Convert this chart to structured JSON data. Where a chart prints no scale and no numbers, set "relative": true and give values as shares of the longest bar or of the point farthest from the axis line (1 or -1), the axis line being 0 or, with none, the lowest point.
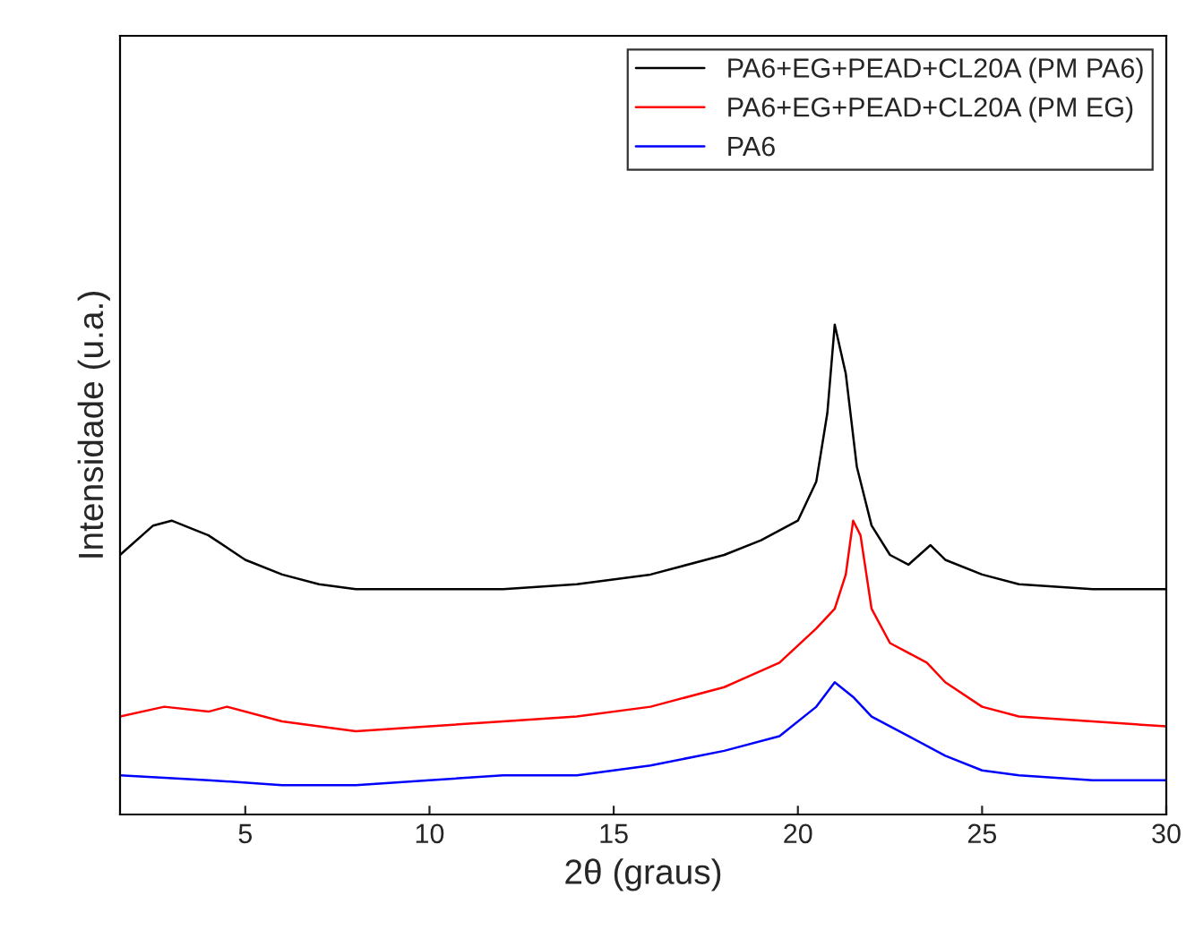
{
  "chart_data": {
    "type": "line",
    "xlabel": "2θ (graus)",
    "ylabel": "Intensidade (u.a.)",
    "relative": true,
    "xlim": [
      1.6,
      30
    ],
    "xticks": [
      5,
      10,
      15,
      20,
      25,
      30
    ],
    "grid": false,
    "legend": "top right",
    "line_style": "solid",
    "marker": "none",
    "tick_labels": "x",
    "series": [
      {
        "name": "PA6+EG+PEAD+CL20A (PM PA6)",
        "color": "#000000",
        "x": [
          1.6,
          2.5,
          3,
          4,
          5,
          6,
          7,
          8,
          10,
          12,
          14,
          16,
          18,
          19,
          20,
          20.5,
          20.8,
          21,
          21.3,
          21.6,
          22,
          22.5,
          23,
          23.6,
          24,
          25,
          26,
          28,
          30
        ],
        "values": [
          0.53,
          0.59,
          0.6,
          0.57,
          0.52,
          0.49,
          0.47,
          0.46,
          0.46,
          0.46,
          0.47,
          0.49,
          0.53,
          0.56,
          0.6,
          0.68,
          0.82,
          1.0,
          0.9,
          0.71,
          0.59,
          0.53,
          0.51,
          0.55,
          0.52,
          0.49,
          0.47,
          0.46,
          0.46
        ]
      },
      {
        "name": "PA6+EG+PEAD+CL20A (PM EG)",
        "color": "#ff0000",
        "x": [
          1.6,
          2.8,
          4,
          4.5,
          6,
          8,
          10,
          12,
          14,
          16,
          18,
          19.5,
          20.5,
          21,
          21.3,
          21.5,
          21.7,
          22,
          22.5,
          23.5,
          24,
          25,
          26,
          28,
          30
        ],
        "values": [
          0.2,
          0.22,
          0.21,
          0.22,
          0.19,
          0.17,
          0.18,
          0.19,
          0.2,
          0.22,
          0.26,
          0.31,
          0.38,
          0.42,
          0.49,
          0.6,
          0.57,
          0.42,
          0.35,
          0.31,
          0.27,
          0.22,
          0.2,
          0.19,
          0.18
        ]
      },
      {
        "name": "PA6",
        "color": "#0000ff",
        "x": [
          1.6,
          4,
          6,
          8,
          10,
          12,
          14,
          16,
          18,
          19.5,
          20.5,
          21,
          21.5,
          22,
          23,
          24,
          25,
          26,
          28,
          30
        ],
        "values": [
          0.08,
          0.07,
          0.06,
          0.06,
          0.07,
          0.08,
          0.08,
          0.1,
          0.13,
          0.16,
          0.22,
          0.27,
          0.24,
          0.2,
          0.16,
          0.12,
          0.09,
          0.08,
          0.07,
          0.07
        ]
      }
    ]
  }
}
